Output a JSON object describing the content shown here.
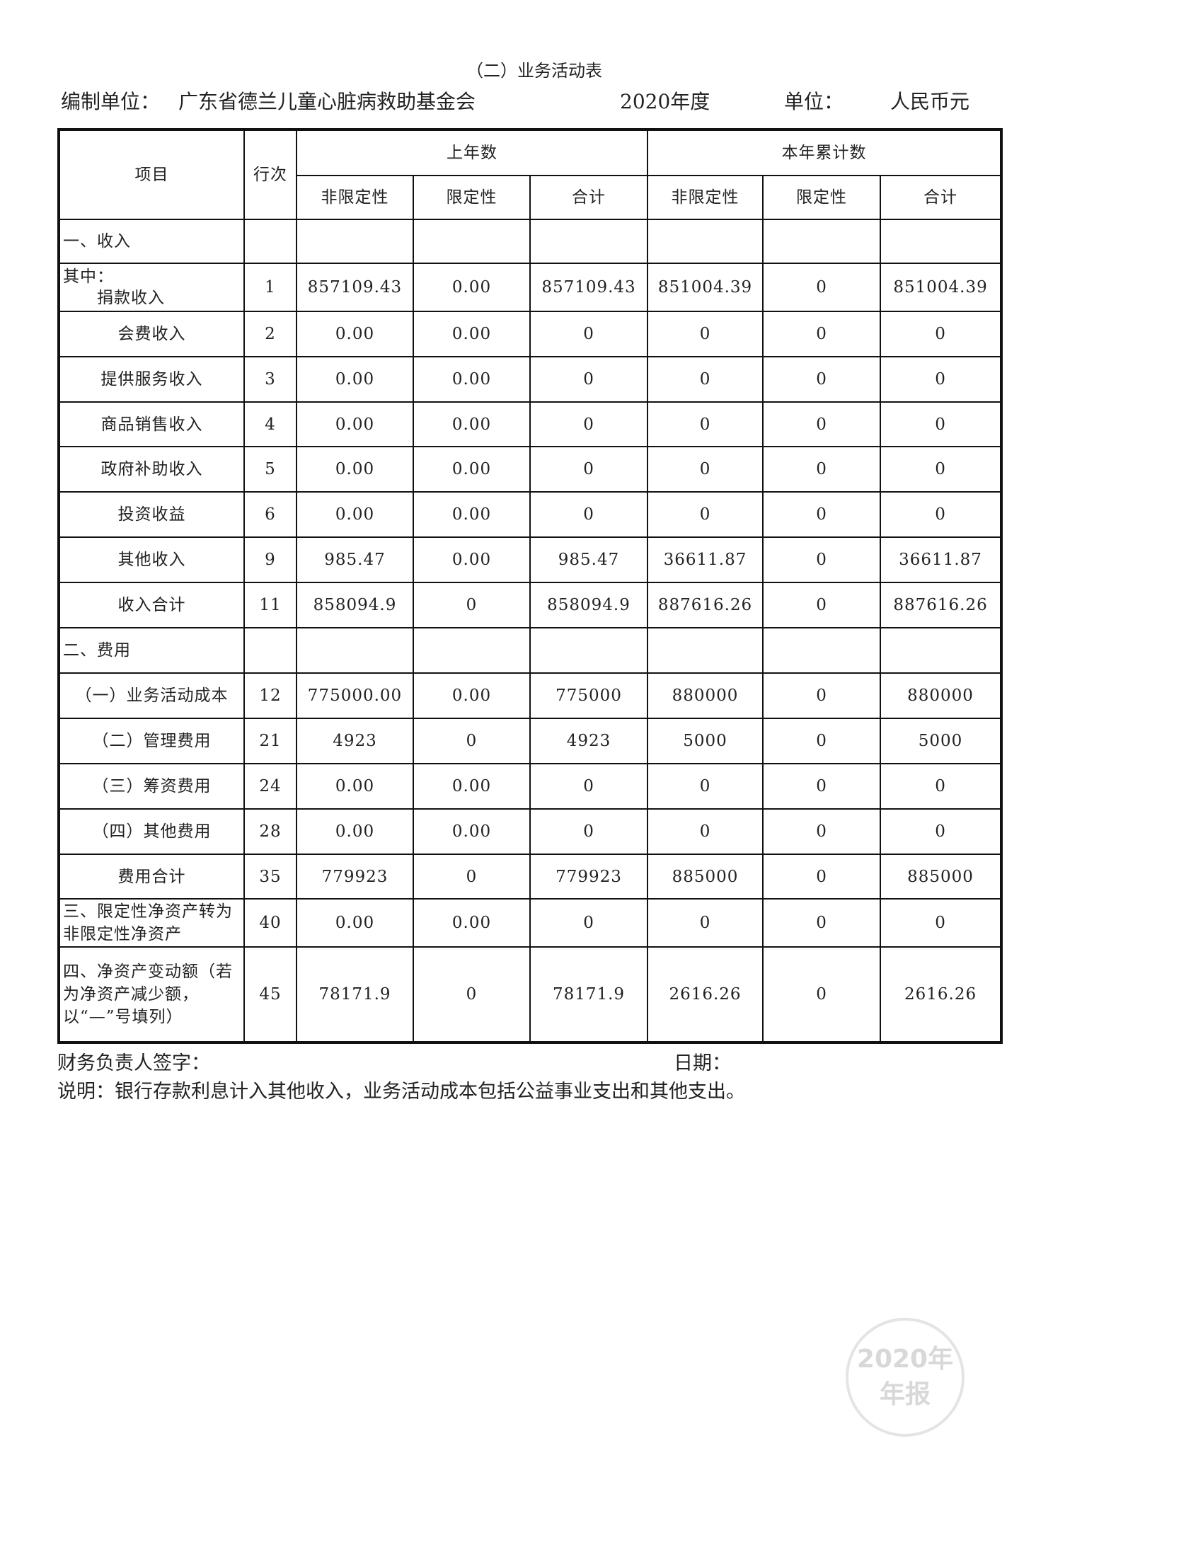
{
  "title": "（二）业务活动表",
  "meta": {
    "org_label": "编制单位：",
    "org_name": "广东省德兰儿童心脏病救助基金会",
    "year": "2020年度",
    "unit_label": "单位：",
    "unit": "人民币元"
  },
  "header": {
    "item": "项目",
    "line": "行次",
    "prev_year": "上年数",
    "this_year": "本年累计数",
    "cols": [
      "非限定性",
      "限定性",
      "合计",
      "非限定性",
      "限定性",
      "合计"
    ]
  },
  "rows": [
    {
      "item": "一、收入",
      "line": "",
      "v": [
        "",
        "",
        "",
        "",
        "",
        ""
      ]
    },
    {
      "item": "其中：",
      "item2": "捐款收入",
      "line": "1",
      "v": [
        "857109.43",
        "0.00",
        "857109.43",
        "851004.39",
        "0",
        "851004.39"
      ]
    },
    {
      "item": "会费收入",
      "line": "2",
      "v": [
        "0.00",
        "0.00",
        "0",
        "0",
        "0",
        "0"
      ]
    },
    {
      "item": "提供服务收入",
      "line": "3",
      "v": [
        "0.00",
        "0.00",
        "0",
        "0",
        "0",
        "0"
      ]
    },
    {
      "item": "商品销售收入",
      "line": "4",
      "v": [
        "0.00",
        "0.00",
        "0",
        "0",
        "0",
        "0"
      ]
    },
    {
      "item": "政府补助收入",
      "line": "5",
      "v": [
        "0.00",
        "0.00",
        "0",
        "0",
        "0",
        "0"
      ]
    },
    {
      "item": "投资收益",
      "line": "6",
      "v": [
        "0.00",
        "0.00",
        "0",
        "0",
        "0",
        "0"
      ]
    },
    {
      "item": "其他收入",
      "line": "9",
      "v": [
        "985.47",
        "0.00",
        "985.47",
        "36611.87",
        "0",
        "36611.87"
      ]
    },
    {
      "item": "收入合计",
      "line": "11",
      "v": [
        "858094.9",
        "0",
        "858094.9",
        "887616.26",
        "0",
        "887616.26"
      ]
    },
    {
      "item": "二、费用",
      "line": "",
      "v": [
        "",
        "",
        "",
        "",
        "",
        ""
      ]
    },
    {
      "item": "（一）业务活动成本",
      "line": "12",
      "v": [
        "775000.00",
        "0.00",
        "775000",
        "880000",
        "0",
        "880000"
      ]
    },
    {
      "item": "（二）管理费用",
      "line": "21",
      "v": [
        "4923",
        "0",
        "4923",
        "5000",
        "0",
        "5000"
      ]
    },
    {
      "item": "（三）筹资费用",
      "line": "24",
      "v": [
        "0.00",
        "0.00",
        "0",
        "0",
        "0",
        "0"
      ]
    },
    {
      "item": "（四）其他费用",
      "line": "28",
      "v": [
        "0.00",
        "0.00",
        "0",
        "0",
        "0",
        "0"
      ]
    },
    {
      "item": "费用合计",
      "line": "35",
      "v": [
        "779923",
        "0",
        "779923",
        "885000",
        "0",
        "885000"
      ]
    },
    {
      "item": "三、限定性净资产转为非限定性净资产",
      "line": "40",
      "v": [
        "0.00",
        "0.00",
        "0",
        "0",
        "0",
        "0"
      ]
    },
    {
      "item": "四、净资产变动额（若为净资产减少额，以“—”号填列）",
      "line": "45",
      "v": [
        "78171.9",
        "0",
        "78171.9",
        "2616.26",
        "0",
        "2616.26"
      ]
    }
  ],
  "footer": {
    "signature": "财务负责人签字：",
    "date": "日期：",
    "note": "说明：银行存款利息计入其他收入，业务活动成本包括公益事业支出和其他支出。"
  },
  "stamp": {
    "line1": "2020年",
    "line2": "年报"
  }
}
